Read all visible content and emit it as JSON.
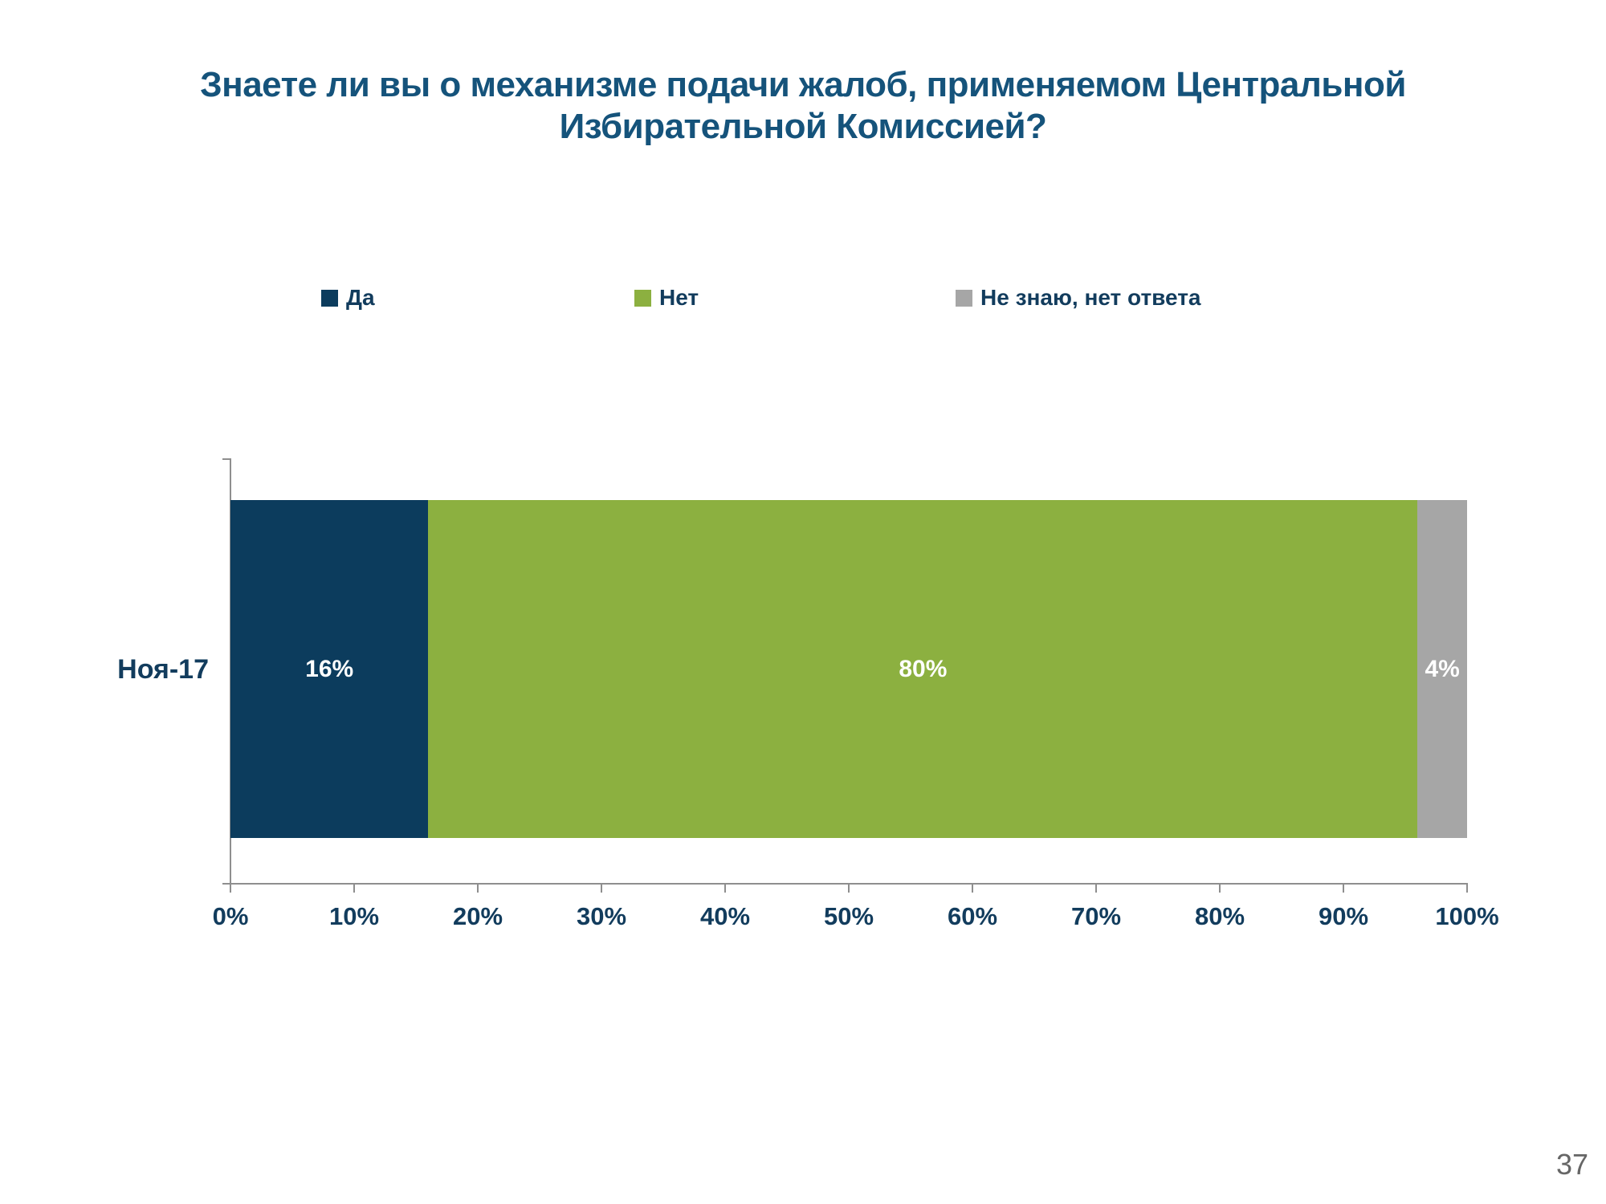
{
  "title": {
    "line1": "Знаете ли вы о механизме подачи жалоб, применяемом Центральной",
    "line2": "Избирательной Комиссией?"
  },
  "page": {
    "number": "37"
  },
  "colors": {
    "title_text": "#15537b",
    "axis_text": "#123c5d",
    "axis_line": "#8e8e8e",
    "series_yes": "#0c3c5d",
    "series_no": "#8cb040",
    "series_dk": "#a6a6a6",
    "page_number": "#666666"
  },
  "chart_data": {
    "type": "bar",
    "orientation": "horizontal",
    "stacked": true,
    "title": "Знаете ли вы о механизме подачи жалоб, применяемом Центральной Избирательной Комиссией?",
    "categories": [
      "Ноя-17"
    ],
    "series": [
      {
        "name": "Да",
        "values": [
          16
        ],
        "color": "#0c3c5d",
        "data_labels": [
          "16%"
        ]
      },
      {
        "name": "Нет",
        "values": [
          80
        ],
        "color": "#8cb040",
        "data_labels": [
          "80%"
        ]
      },
      {
        "name": "Не знаю, нет ответа",
        "values": [
          4
        ],
        "color": "#a6a6a6",
        "data_labels": [
          "4%"
        ]
      }
    ],
    "x_axis": {
      "min": 0,
      "max": 100,
      "tick_step": 10,
      "tick_labels": [
        "0%",
        "10%",
        "20%",
        "30%",
        "40%",
        "50%",
        "60%",
        "70%",
        "80%",
        "90%",
        "100%"
      ]
    },
    "y_axis": {
      "gridlines": false
    },
    "legend_position": "top",
    "data_label_color": "#ffffff"
  }
}
